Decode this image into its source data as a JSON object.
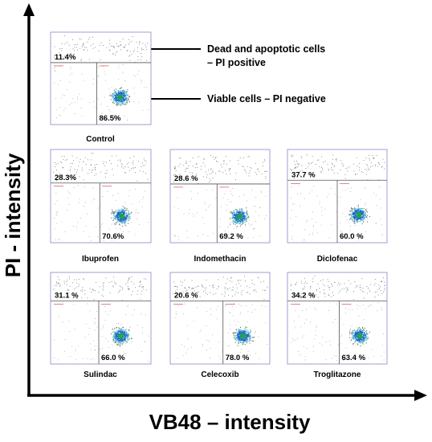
{
  "axes": {
    "x_label": "VB48 – intensity",
    "y_label": "PI - intensity"
  },
  "annotations": {
    "dead_line1": "Dead and apoptotic cells",
    "dead_line2": "– PI positive",
    "viable": "Viable cells – PI negative"
  },
  "panels": [
    {
      "name": "Control",
      "pi_positive": "11.4%",
      "pi_negative": "86.5%"
    },
    {
      "name": "Ibuprofen",
      "pi_positive": "28.3%",
      "pi_negative": "70.6%"
    },
    {
      "name": "Indomethacin",
      "pi_positive": "28.6 %",
      "pi_negative": "69.2 %"
    },
    {
      "name": "Diclofenac",
      "pi_positive": "37.7 %",
      "pi_negative": "60.0 %"
    },
    {
      "name": "Sulindac",
      "pi_positive": "31.1 %",
      "pi_negative": "66.0 %"
    },
    {
      "name": "Celecoxib",
      "pi_positive": "20.6 %",
      "pi_negative": "78.0 %"
    },
    {
      "name": "Troglitazone",
      "pi_positive": "34.2 %",
      "pi_negative": "63.4 %"
    }
  ],
  "colors": {
    "panel_border": "#8888cc",
    "gate_line": "#555555",
    "cluster_core": "#1aa05a",
    "cluster_mid": "#2a5fd0",
    "cluster_edge": "#3bbccc",
    "axis": "#000000"
  }
}
